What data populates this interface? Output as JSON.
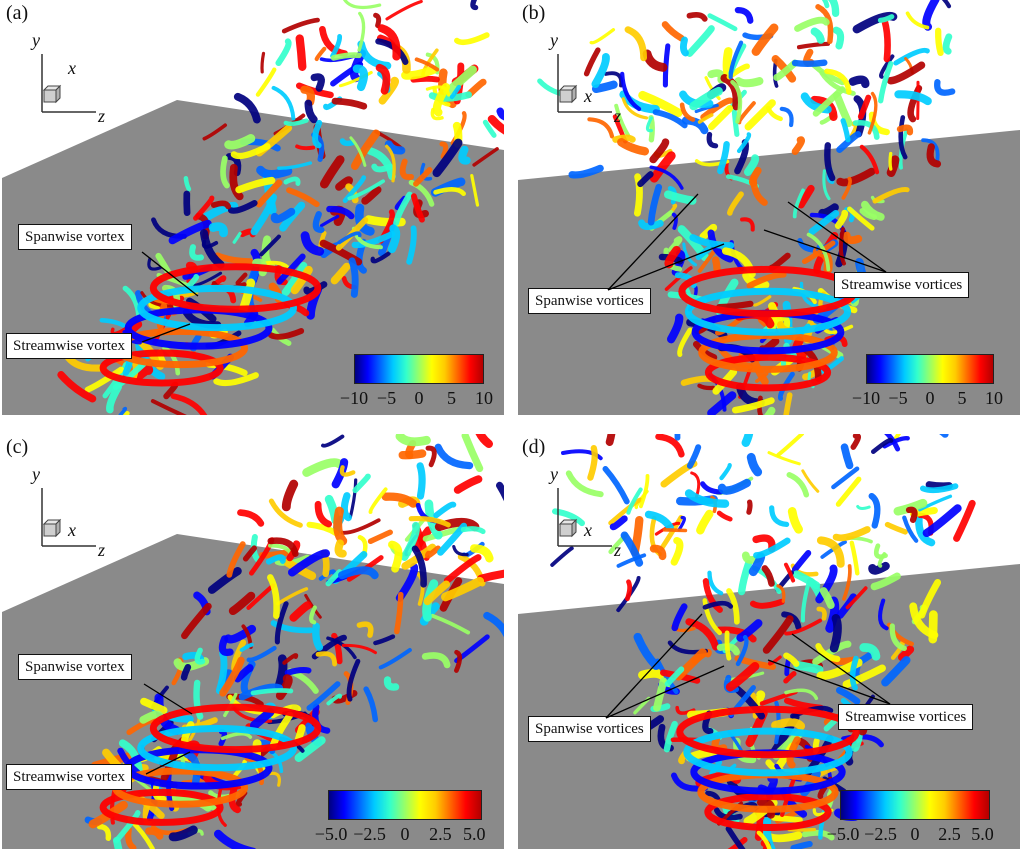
{
  "colors": {
    "ground": "#8a8a8a",
    "colormap": [
      "#00007f",
      "#0000ff",
      "#0066ff",
      "#00ccff",
      "#33ffcc",
      "#99ff66",
      "#ffff00",
      "#ffcc00",
      "#ff6600",
      "#ff0000",
      "#b20000"
    ]
  },
  "axes": {
    "y": "y",
    "x": "x",
    "z": "z"
  },
  "panels": [
    {
      "label": "(a)",
      "annotations": [
        "Spanwise vortex",
        "Streamwise vortex"
      ],
      "colorbar_ticks": [
        "−10",
        "−5",
        "0",
        "5",
        "10"
      ]
    },
    {
      "label": "(b)",
      "annotations": [
        "Spanwise vortices",
        "Streamwise vortices"
      ],
      "colorbar_ticks": [
        "−10",
        "−5",
        "0",
        "5",
        "10"
      ]
    },
    {
      "label": "(c)",
      "annotations": [
        "Spanwise vortex",
        "Streamwise vortex"
      ],
      "colorbar_ticks": [
        "−5.0",
        "−2.5",
        "0",
        "2.5",
        "5.0"
      ]
    },
    {
      "label": "(d)",
      "annotations": [
        "Spanwise vortices",
        "Streamwise vortices"
      ],
      "colorbar_ticks": [
        "−5.0",
        "−2.5",
        "0",
        "2.5",
        "5.0"
      ]
    }
  ]
}
